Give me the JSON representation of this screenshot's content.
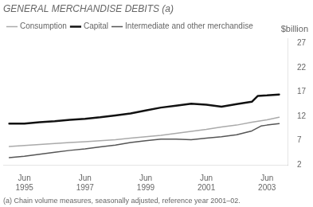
{
  "chart_data": {
    "type": "line",
    "title": "GENERAL MERCHANDISE DEBITS (a)",
    "ylabel": "$billion",
    "footnote": "(a) Chain volume measures, seasonally adjusted, reference year 2001–02.",
    "xlim": [
      1994.3,
      2003.7
    ],
    "xticks": [
      {
        "value": 1995,
        "label": "Jun\n1995"
      },
      {
        "value": 1997,
        "label": "Jun\n1997"
      },
      {
        "value": 1999,
        "label": "Jun\n1999"
      },
      {
        "value": 2001,
        "label": "Jun\n2001"
      },
      {
        "value": 2003,
        "label": "Jun\n2003"
      }
    ],
    "ylim": [
      2,
      28
    ],
    "yticks": [
      2,
      7,
      12,
      17,
      22,
      27
    ],
    "grid": false,
    "legend": "upper left",
    "series": [
      {
        "name": "Consumption",
        "color": "#aaaaaa",
        "x": [
          1994.5,
          1995.0,
          1995.5,
          1996.0,
          1996.5,
          1997.0,
          1997.5,
          1998.0,
          1998.5,
          1999.0,
          1999.5,
          2000.0,
          2000.5,
          2001.0,
          2001.5,
          2002.0,
          2002.5,
          2003.0,
          2003.4
        ],
        "values": [
          5.8,
          6.0,
          6.2,
          6.4,
          6.6,
          6.8,
          7.0,
          7.2,
          7.5,
          7.8,
          8.1,
          8.5,
          8.9,
          9.3,
          9.8,
          10.2,
          10.8,
          11.3,
          11.8
        ]
      },
      {
        "name": "Capital",
        "color": "#111111",
        "x": [
          1994.5,
          1995.0,
          1995.5,
          1996.0,
          1996.5,
          1997.0,
          1997.5,
          1998.0,
          1998.5,
          1999.0,
          1999.5,
          2000.0,
          2000.5,
          2001.0,
          2001.5,
          2002.0,
          2002.5,
          2002.7,
          2003.0,
          2003.4
        ],
        "values": [
          10.5,
          10.5,
          10.8,
          11.0,
          11.3,
          11.5,
          11.8,
          12.2,
          12.6,
          13.2,
          13.8,
          14.2,
          14.6,
          14.4,
          14.0,
          14.5,
          15.0,
          16.2,
          16.3,
          16.5
        ]
      },
      {
        "name": "Intermediate and other merchandise",
        "color": "#555555",
        "x": [
          1994.5,
          1995.0,
          1995.5,
          1996.0,
          1996.5,
          1997.0,
          1997.5,
          1998.0,
          1998.5,
          1999.0,
          1999.5,
          2000.0,
          2000.5,
          2001.0,
          2001.5,
          2002.0,
          2002.5,
          2002.8,
          2003.0,
          2003.4
        ],
        "values": [
          3.5,
          3.8,
          4.2,
          4.6,
          5.0,
          5.3,
          5.7,
          6.1,
          6.6,
          7.0,
          7.3,
          7.3,
          7.2,
          7.5,
          7.8,
          8.2,
          9.0,
          10.0,
          10.2,
          10.5
        ]
      }
    ]
  }
}
